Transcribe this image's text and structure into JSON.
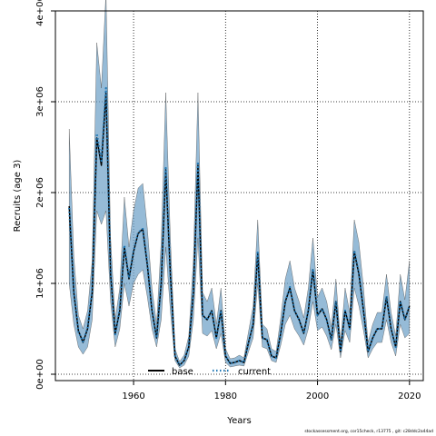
{
  "chart_data": {
    "type": "line",
    "xlabel": "Years",
    "ylabel": "Recruits (age 3)",
    "xlim": [
      1943,
      2023
    ],
    "ylim": [
      -70000,
      4000000
    ],
    "x_ticks": [
      1960,
      1980,
      2000,
      2020
    ],
    "x_tick_labels": [
      "1960",
      "1980",
      "2000",
      "2020"
    ],
    "y_ticks": [
      0,
      1000000,
      2000000,
      3000000,
      4000000
    ],
    "y_tick_labels": [
      "0e+00",
      "1e+06",
      "2e+06",
      "3e+06",
      "4e+06"
    ],
    "grid": true,
    "legend_position": "bottom-center",
    "x": [
      1946,
      1947,
      1948,
      1949,
      1950,
      1951,
      1952,
      1953,
      1954,
      1955,
      1956,
      1957,
      1958,
      1959,
      1960,
      1961,
      1962,
      1963,
      1964,
      1965,
      1966,
      1967,
      1968,
      1969,
      1970,
      1971,
      1972,
      1973,
      1974,
      1975,
      1976,
      1977,
      1978,
      1979,
      1980,
      1981,
      1982,
      1983,
      1984,
      1985,
      1986,
      1987,
      1988,
      1989,
      1990,
      1991,
      1992,
      1993,
      1994,
      1995,
      1996,
      1997,
      1998,
      1999,
      2000,
      2001,
      2002,
      2003,
      2004,
      2005,
      2006,
      2007,
      2008,
      2009,
      2010,
      2011,
      2012,
      2013,
      2014,
      2015,
      2016,
      2017,
      2018,
      2019,
      2020
    ],
    "series": [
      {
        "name": "base",
        "color": "#000000",
        "style": "solid",
        "values": [
          1850000,
          900000,
          480000,
          350000,
          500000,
          900000,
          2600000,
          2300000,
          3100000,
          1100000,
          450000,
          700000,
          1400000,
          1050000,
          1350000,
          1550000,
          1600000,
          1200000,
          700000,
          400000,
          1000000,
          2250000,
          1100000,
          200000,
          100000,
          150000,
          300000,
          900000,
          2300000,
          650000,
          600000,
          700000,
          400000,
          700000,
          200000,
          120000,
          130000,
          150000,
          130000,
          350000,
          550000,
          1330000,
          400000,
          380000,
          200000,
          180000,
          450000,
          800000,
          950000,
          700000,
          600000,
          450000,
          700000,
          1150000,
          650000,
          720000,
          600000,
          380000,
          800000,
          250000,
          700000,
          500000,
          1350000,
          1100000,
          700000,
          250000,
          400000,
          500000,
          500000,
          850000,
          500000,
          300000,
          800000,
          600000,
          750000
        ]
      },
      {
        "name": "current",
        "color": "#1f77b4",
        "style": "dotted",
        "values": [
          1830000,
          920000,
          470000,
          360000,
          510000,
          920000,
          2650000,
          2350000,
          3150000,
          1120000,
          440000,
          720000,
          1420000,
          1060000,
          1360000,
          1560000,
          1600000,
          1210000,
          710000,
          400000,
          1010000,
          2270000,
          1110000,
          200000,
          100000,
          150000,
          300000,
          900000,
          2320000,
          650000,
          600000,
          700000,
          400000,
          700000,
          200000,
          120000,
          130000,
          150000,
          130000,
          350000,
          550000,
          1340000,
          400000,
          380000,
          200000,
          180000,
          450000,
          800000,
          960000,
          700000,
          600000,
          450000,
          700000,
          1160000,
          650000,
          720000,
          600000,
          380000,
          800000,
          250000,
          700000,
          500000,
          1360000,
          1110000,
          700000,
          250000,
          400000,
          500000,
          500000,
          860000,
          500000,
          300000,
          800000,
          600000,
          750000
        ]
      }
    ],
    "ci_band": {
      "color": "#6a9ec6",
      "lower": [
        1000000,
        550000,
        300000,
        220000,
        300000,
        600000,
        1800000,
        1650000,
        1800000,
        800000,
        300000,
        500000,
        1000000,
        750000,
        1000000,
        1100000,
        1150000,
        850000,
        500000,
        300000,
        600000,
        1400000,
        700000,
        150000,
        70000,
        100000,
        200000,
        600000,
        1500000,
        450000,
        420000,
        480000,
        280000,
        450000,
        130000,
        80000,
        90000,
        100000,
        90000,
        250000,
        400000,
        1000000,
        300000,
        280000,
        150000,
        130000,
        320000,
        550000,
        650000,
        500000,
        420000,
        320000,
        500000,
        800000,
        480000,
        520000,
        420000,
        270000,
        550000,
        180000,
        480000,
        350000,
        950000,
        750000,
        480000,
        180000,
        280000,
        350000,
        350000,
        600000,
        350000,
        200000,
        550000,
        400000,
        450000
      ],
      "upper": [
        2700000,
        1300000,
        650000,
        500000,
        700000,
        1250000,
        3650000,
        3150000,
        4200000,
        1500000,
        600000,
        950000,
        1950000,
        1400000,
        1800000,
        2050000,
        2100000,
        1600000,
        950000,
        550000,
        1450000,
        3100000,
        1500000,
        280000,
        140000,
        210000,
        420000,
        1250000,
        3100000,
        900000,
        800000,
        950000,
        550000,
        950000,
        280000,
        170000,
        180000,
        210000,
        180000,
        470000,
        750000,
        1700000,
        550000,
        500000,
        280000,
        250000,
        620000,
        1050000,
        1250000,
        950000,
        800000,
        620000,
        950000,
        1500000,
        850000,
        950000,
        800000,
        520000,
        1050000,
        350000,
        950000,
        680000,
        1700000,
        1450000,
        950000,
        350000,
        550000,
        680000,
        680000,
        1100000,
        680000,
        420000,
        1100000,
        820000,
        1250000
      ]
    }
  },
  "footer_text": "stockassessment.org, cor15check, r13775 , git: c28ddc2a44ad"
}
